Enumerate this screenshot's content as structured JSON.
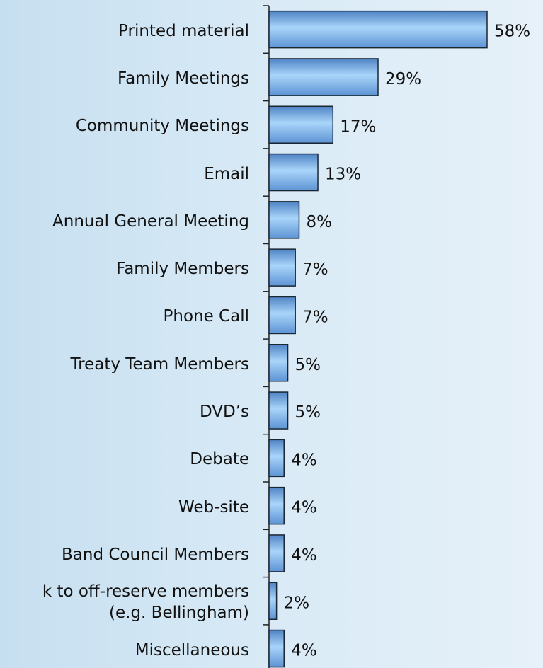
{
  "chart_data": {
    "type": "bar",
    "orientation": "horizontal",
    "categories": [
      "Printed material",
      "Family Meetings",
      "Community Meetings",
      "Email",
      "Annual General Meeting",
      "Family Members",
      "Phone Call",
      "Treaty Team Members",
      "DVD’s",
      "Debate",
      "Web-site",
      "Band Council Members",
      "k to off-reserve members\n(e.g. Bellingham)",
      "Miscellaneous"
    ],
    "values": [
      58,
      29,
      17,
      13,
      8,
      7,
      7,
      5,
      5,
      4,
      4,
      4,
      2,
      4
    ],
    "value_labels": [
      "58%",
      "29%",
      "17%",
      "13%",
      "8%",
      "7%",
      "7%",
      "5%",
      "5%",
      "4%",
      "4%",
      "4%",
      "2%",
      "4%"
    ],
    "color": "#7fb6ec"
  }
}
